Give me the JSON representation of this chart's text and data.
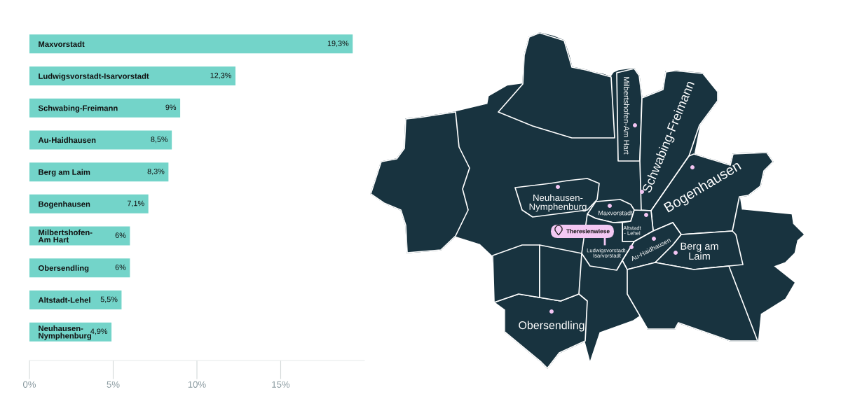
{
  "chart_data": [
    {
      "type": "bar",
      "orientation": "horizontal",
      "categories": [
        "Maxvorstadt",
        "Ludwigsvorstadt-Isarvorstadt",
        "Schwabing-Freimann",
        "Au-Haidhausen",
        "Berg am Laim",
        "Bogenhausen",
        "Milbertshofen-\nAm Hart",
        "Obersendling",
        "Altstadt-Lehel",
        "Neuhausen-\nNymphenburg"
      ],
      "values": [
        19.3,
        12.3,
        9,
        8.5,
        8.3,
        7.1,
        6,
        6,
        5.5,
        4.9
      ],
      "value_labels": [
        "19,3%",
        "12,3%",
        "9%",
        "8,5%",
        "8,3%",
        "7,1%",
        "6%",
        "6%",
        "5,5%",
        "4,9%"
      ],
      "color": "#73d4c9",
      "xlim": [
        0,
        20
      ],
      "xticks": [
        {
          "value": 0,
          "label": "0%"
        },
        {
          "value": 5,
          "label": "5%"
        },
        {
          "value": 10,
          "label": "10%"
        },
        {
          "value": 15,
          "label": "15%"
        }
      ]
    },
    {
      "type": "other",
      "annotations": [
        "Milbertshofen-Am Hart",
        "Schwabing-Freimann",
        "Bogenhausen",
        "Neuhausen-\nNymphenburg",
        "Maxvorstadt",
        "Altstadt\n- Lehel",
        "Theresienwiese",
        "Ludwigsvorstadt-\nIsarvorstadt",
        "Au-Haidhausen",
        "Berg am\nLaim",
        "Obersendling"
      ]
    }
  ]
}
